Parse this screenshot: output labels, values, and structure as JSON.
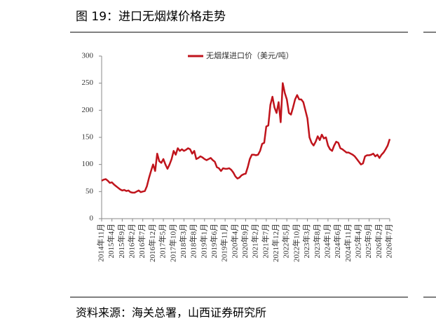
{
  "chart_data": {
    "type": "line",
    "title": "图 19：进口无烟煤价格走势",
    "source": "资料来源：海关总署，山西证券研究所",
    "categories": [
      "2014年11月",
      null,
      null,
      null,
      null,
      "2015年4月",
      null,
      null,
      null,
      null,
      "2015年9月",
      null,
      null,
      null,
      null,
      "2016年2月",
      null,
      null,
      null,
      null,
      "2016年7月",
      null,
      null,
      null,
      null,
      "2016年12月",
      null,
      null,
      null,
      null,
      "2017年5月",
      null,
      null,
      null,
      null,
      "2017年10月",
      null,
      null,
      null,
      null,
      "2018年3月",
      null,
      null,
      null,
      null,
      "2018年8月",
      null,
      null,
      null,
      null,
      "2019年1月",
      null,
      null,
      null,
      null,
      "2019年6月",
      null,
      null,
      null,
      null,
      "2019年11月",
      null,
      null,
      null,
      null,
      "2020年4月",
      null,
      null,
      null,
      null,
      "2020年9月",
      null,
      null,
      null,
      null,
      "2021年2月",
      null,
      null,
      null,
      null,
      "2021年7月",
      null,
      null,
      null,
      null,
      "2021年12月",
      null,
      null,
      null,
      null,
      "2022年5月",
      null,
      null,
      null,
      null,
      "2022年10月",
      null,
      null,
      null,
      null,
      "2023年3月",
      null,
      null,
      null,
      null,
      "2023年8月",
      null,
      null,
      null,
      null,
      "2024年1月",
      null,
      null,
      null,
      null,
      "2024年6月",
      null,
      null,
      null,
      null,
      "2024年11月",
      null,
      null,
      null,
      null,
      "2025年4月",
      null,
      null,
      null,
      null,
      "2025年9月",
      null,
      null,
      null,
      null,
      "2026年2月",
      null,
      null,
      null,
      null,
      "2026年7月"
    ],
    "series": [
      {
        "name": "无烟煤进口价（美元/吨）",
        "color": "#c0141c",
        "values": [
          70,
          72,
          73,
          70,
          66,
          67,
          63,
          60,
          57,
          54,
          52,
          53,
          51,
          52,
          49,
          48,
          48,
          50,
          52,
          49,
          50,
          51,
          60,
          75,
          88,
          100,
          88,
          120,
          106,
          103,
          110,
          100,
          92,
          100,
          110,
          125,
          118,
          130,
          125,
          128,
          125,
          127,
          130,
          128,
          120,
          125,
          110,
          112,
          115,
          113,
          110,
          108,
          110,
          112,
          108,
          105,
          95,
          93,
          88,
          93,
          92,
          92,
          93,
          90,
          85,
          78,
          74,
          76,
          80,
          82,
          83,
          95,
          110,
          118,
          118,
          117,
          118,
          125,
          138,
          140,
          170,
          172,
          210,
          225,
          205,
          195,
          215,
          178,
          250,
          232,
          220,
          195,
          192,
          205,
          220,
          228,
          220,
          220,
          215,
          200,
          185,
          150,
          140,
          135,
          142,
          152,
          145,
          155,
          148,
          150,
          135,
          128,
          125,
          135,
          142,
          140,
          130,
          128,
          125,
          122,
          122,
          120,
          118,
          115,
          110,
          105,
          100,
          102,
          115,
          117,
          117,
          118,
          120,
          115,
          118,
          112,
          118,
          122,
          128,
          135,
          147
        ]
      }
    ],
    "ylim": [
      0,
      300
    ],
    "yticks": [
      0,
      50,
      100,
      150,
      200,
      250,
      300
    ],
    "grid": false
  }
}
